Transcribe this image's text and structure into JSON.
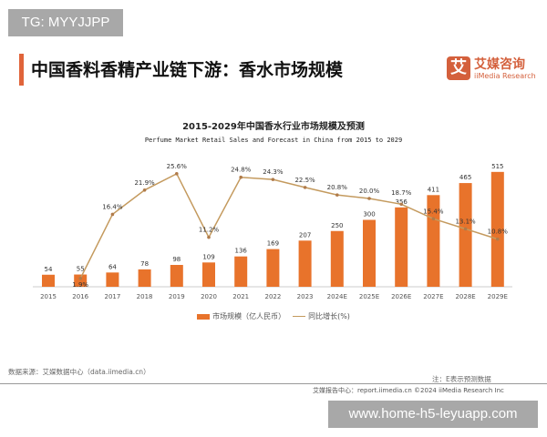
{
  "watermarks": {
    "top_left": "TG: MYYJJPP",
    "bottom_right": "www.home-h5-leyuapp.com"
  },
  "header": {
    "title": "中国香料香精产业链下游：香水市场规模",
    "logo_cn": "艾媒咨询",
    "logo_en": "iiMedia Research",
    "logo_mark": "艾"
  },
  "colors": {
    "accent": "#e0643a",
    "bar": "#e8732b",
    "line": "#c49a5e"
  },
  "chart_data": {
    "type": "bar+line",
    "title": "2015-2029年中国香水行业市场规模及预测",
    "subtitle": "Perfume Market Retail Sales and Forecast in China from 2015 to 2029",
    "categories": [
      "2015",
      "2016",
      "2017",
      "2018",
      "2019",
      "2020",
      "2021",
      "2022",
      "2023",
      "2024E",
      "2025E",
      "2026E",
      "2027E",
      "2028E",
      "2029E"
    ],
    "series": [
      {
        "name": "市场规模（亿人民币）",
        "type": "bar",
        "values": [
          54,
          55,
          64,
          78,
          98,
          109,
          136,
          169,
          207,
          250,
          300,
          356,
          411,
          465,
          515
        ]
      },
      {
        "name": "同比增长(%)",
        "type": "line",
        "values": [
          null,
          1.9,
          16.4,
          21.9,
          25.6,
          11.2,
          24.8,
          24.3,
          22.5,
          20.8,
          20.0,
          18.7,
          15.4,
          13.1,
          10.8
        ]
      }
    ],
    "legend": "bottom",
    "grid": false
  },
  "footer": {
    "source": "数据来源：艾媒数据中心（data.iimedia.cn）",
    "note": "注：E表示预测数据",
    "credit": "艾媒报告中心：report.iimedia.cn  ©2024  iiMedia Research  Inc"
  }
}
